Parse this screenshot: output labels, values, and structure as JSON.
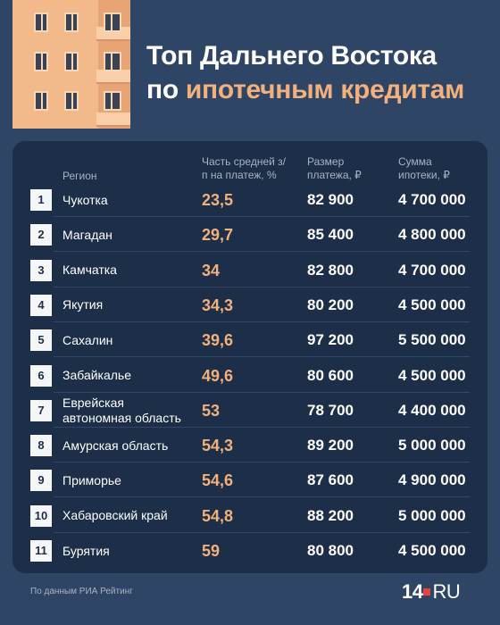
{
  "title": {
    "line1": "Топ Дальнего Востока",
    "line2_white": "по ",
    "line2_accent": "ипотечным кредитам"
  },
  "columns": {
    "region": "Регион",
    "share": "Часть средней з/п на платеж, %",
    "payment": "Размер платежа, ₽",
    "mortgage": "Сумма ипотеки, ₽"
  },
  "chart_data": {
    "type": "table",
    "title": "Топ Дальнего Востока по ипотечным кредитам",
    "rows": [
      {
        "rank": "1",
        "region": "Чукотка",
        "share": "23,5",
        "payment": "82 900",
        "mortgage": "4 700 000"
      },
      {
        "rank": "2",
        "region": "Магадан",
        "share": "29,7",
        "payment": "85 400",
        "mortgage": "4 800 000"
      },
      {
        "rank": "3",
        "region": "Камчатка",
        "share": "34",
        "payment": "82 800",
        "mortgage": "4 700 000"
      },
      {
        "rank": "4",
        "region": "Якутия",
        "share": "34,3",
        "payment": "80 200",
        "mortgage": "4 500 000"
      },
      {
        "rank": "5",
        "region": "Сахалин",
        "share": "39,6",
        "payment": "97 200",
        "mortgage": "5 500 000"
      },
      {
        "rank": "6",
        "region": "Забайкалье",
        "share": "49,6",
        "payment": "80 600",
        "mortgage": "4 500 000"
      },
      {
        "rank": "7",
        "region": "Еврейская автономная область",
        "share": "53",
        "payment": "78 700",
        "mortgage": "4 400 000"
      },
      {
        "rank": "8",
        "region": "Амурская область",
        "share": "54,3",
        "payment": "89 200",
        "mortgage": "5 000 000"
      },
      {
        "rank": "9",
        "region": "Приморье",
        "share": "54,6",
        "payment": "87 600",
        "mortgage": "4 900 000"
      },
      {
        "rank": "10",
        "region": "Хабаровский край",
        "share": "54,8",
        "payment": "88 200",
        "mortgage": "5 000 000"
      },
      {
        "rank": "11",
        "region": "Бурятия",
        "share": "59",
        "payment": "80 800",
        "mortgage": "4 500 000"
      }
    ]
  },
  "footer": {
    "source": "По данным РИА Рейтинг",
    "logo_num": "14",
    "logo_ru": "RU"
  },
  "colors": {
    "background": "#2f4566",
    "panel": "#1d2e48",
    "accent": "#f2b07c",
    "logo_dot": "#e8433f"
  }
}
